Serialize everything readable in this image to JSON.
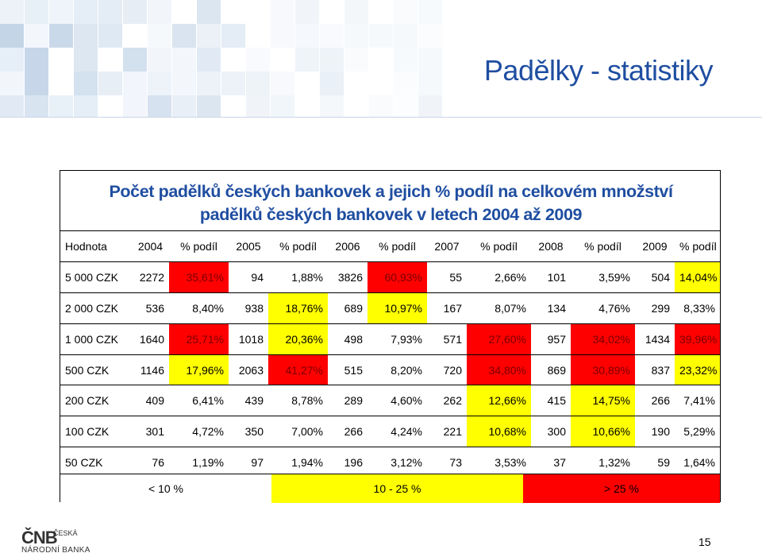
{
  "slide": {
    "title": "Padělky - statistiky",
    "page_number": "15"
  },
  "panel": {
    "heading_line1": "Počet padělků českých bankovek a jejich % podíl na celkovém množství",
    "heading_line2": "padělků českých bankovek v letech 2004 až 2009"
  },
  "table": {
    "headers": [
      "Hodnota",
      "2004",
      "% podíl",
      "2005",
      "% podíl",
      "2006",
      "% podíl",
      "2007",
      "% podíl",
      "2008",
      "% podíl",
      "2009",
      "% podíl"
    ],
    "rows": [
      [
        "5 000 CZK",
        "2272",
        "35,61%",
        "94",
        "1,88%",
        "3826",
        "60,93%",
        "55",
        "2,66%",
        "101",
        "3,59%",
        "504",
        "14,04%"
      ],
      [
        "2 000 CZK",
        "536",
        "8,40%",
        "938",
        "18,76%",
        "689",
        "10,97%",
        "167",
        "8,07%",
        "134",
        "4,76%",
        "299",
        "8,33%"
      ],
      [
        "1 000 CZK",
        "1640",
        "25,71%",
        "1018",
        "20,36%",
        "498",
        "7,93%",
        "571",
        "27,60%",
        "957",
        "34,02%",
        "1434",
        "39,96%"
      ],
      [
        "500 CZK",
        "1146",
        "17,96%",
        "2063",
        "41,27%",
        "515",
        "8,20%",
        "720",
        "34,80%",
        "869",
        "30,89%",
        "837",
        "23,32%"
      ],
      [
        "200 CZK",
        "409",
        "6,41%",
        "439",
        "8,78%",
        "289",
        "4,60%",
        "262",
        "12,66%",
        "415",
        "14,75%",
        "266",
        "7,41%"
      ],
      [
        "100 CZK",
        "301",
        "4,72%",
        "350",
        "7,00%",
        "266",
        "4,24%",
        "221",
        "10,68%",
        "300",
        "10,66%",
        "190",
        "5,29%"
      ],
      [
        "50 CZK",
        "76",
        "1,19%",
        "97",
        "1,94%",
        "196",
        "3,12%",
        "73",
        "3,53%",
        "37",
        "1,32%",
        "59",
        "1,64%"
      ]
    ],
    "highlights": [
      [
        "",
        "",
        "red",
        "",
        "",
        "",
        "red",
        "",
        "",
        "",
        "",
        "",
        "yellow"
      ],
      [
        "",
        "",
        "",
        "",
        "yellow",
        "",
        "yellow",
        "",
        "",
        "",
        "",
        "",
        ""
      ],
      [
        "",
        "",
        "red",
        "",
        "yellow",
        "",
        "",
        "",
        "red",
        "",
        "red",
        "",
        "red"
      ],
      [
        "",
        "",
        "yellow",
        "",
        "red",
        "",
        "",
        "",
        "red",
        "",
        "red",
        "",
        "yellow"
      ],
      [
        "",
        "",
        "",
        "",
        "",
        "",
        "",
        "",
        "yellow",
        "",
        "yellow",
        "",
        ""
      ],
      [
        "",
        "",
        "",
        "",
        "",
        "",
        "",
        "",
        "yellow",
        "",
        "yellow",
        "",
        ""
      ],
      [
        "",
        "",
        "",
        "",
        "",
        "",
        "",
        "",
        "",
        "",
        "",
        "",
        ""
      ]
    ]
  },
  "legend": {
    "low_label": "< 10 %",
    "mid_label": "10 - 25 %",
    "high_label": "> 25 %",
    "low_color": "#ffffff",
    "mid_color": "#ffff00",
    "high_color": "#ff0000"
  },
  "logo": {
    "mark": "ČNB",
    "text_line1": "ČESKÁ",
    "text_line2": "NÁRODNÍ BANKA"
  },
  "colors": {
    "title": "#1f4ea1",
    "mosaic_base": "#e4ecf5"
  }
}
